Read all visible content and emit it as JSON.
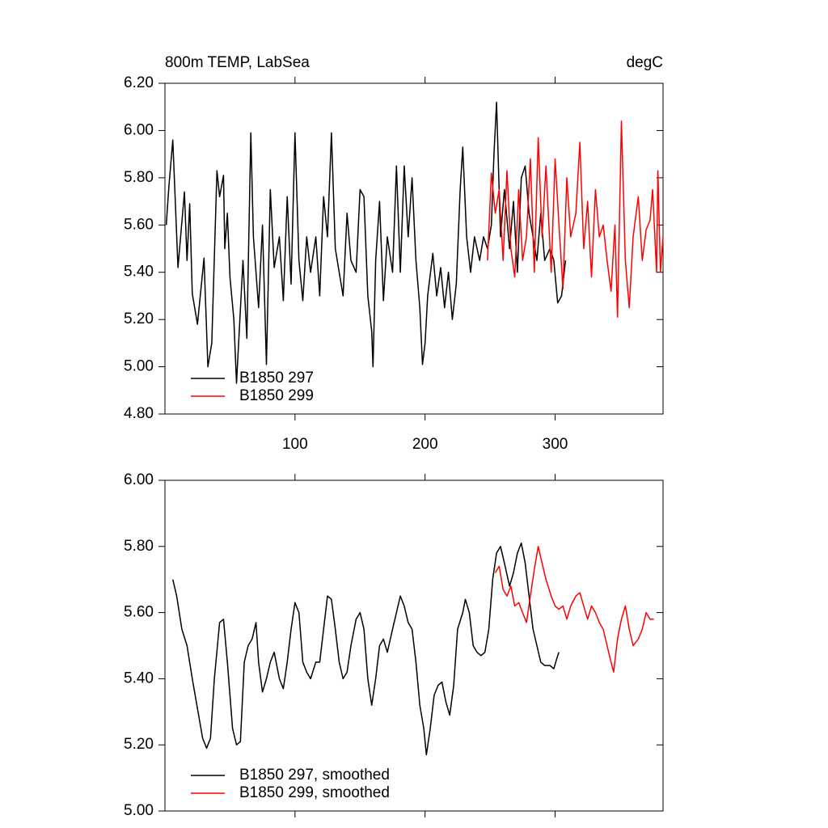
{
  "chart_data": [
    {
      "type": "line",
      "title": "800m TEMP, LabSea",
      "units": "degC",
      "xlim": [
        0,
        383
      ],
      "xticks": [
        100,
        200,
        300
      ],
      "show_xtick_labels": true,
      "ylim": [
        4.8,
        6.2
      ],
      "yticks": [
        {
          "value": 4.8,
          "label": "4.80"
        },
        {
          "value": 5.0,
          "label": "5.00"
        },
        {
          "value": 5.2,
          "label": "5.20"
        },
        {
          "value": 5.4,
          "label": "5.40"
        },
        {
          "value": 5.6,
          "label": "5.60"
        },
        {
          "value": 5.8,
          "label": "5.80"
        },
        {
          "value": 6.0,
          "label": "6.00"
        },
        {
          "value": 6.2,
          "label": "6.20"
        }
      ],
      "legend": "lower left",
      "series": [
        {
          "name": "B1850 297",
          "color": "#000000",
          "x": [
            1,
            3,
            6,
            10,
            15,
            17,
            19,
            21,
            25,
            30,
            33,
            36,
            40,
            42,
            45,
            46,
            48,
            50,
            53,
            55,
            60,
            63,
            66,
            68,
            72,
            75,
            78,
            81,
            84,
            88,
            91,
            94,
            97,
            100,
            103,
            106,
            109,
            112,
            116,
            119,
            122,
            125,
            128,
            131,
            134,
            137,
            140,
            143,
            147,
            150,
            153,
            156,
            159,
            160,
            162,
            165,
            168,
            171,
            175,
            178,
            181,
            184,
            187,
            190,
            193,
            196,
            198,
            200,
            202,
            206,
            209,
            212,
            215,
            218,
            221,
            224,
            227,
            229,
            232,
            235,
            238,
            242,
            245,
            248,
            251,
            253,
            255,
            258,
            261,
            265,
            268,
            271,
            274,
            277,
            280,
            283,
            286,
            289,
            292,
            296,
            299,
            302,
            305,
            308
          ],
          "values": [
            5.6,
            5.76,
            5.96,
            5.42,
            5.74,
            5.45,
            5.69,
            5.31,
            5.18,
            5.46,
            5.0,
            5.1,
            5.83,
            5.72,
            5.81,
            5.5,
            5.65,
            5.38,
            5.2,
            4.93,
            5.45,
            5.12,
            5.99,
            5.55,
            5.25,
            5.6,
            5.01,
            5.75,
            5.42,
            5.55,
            5.28,
            5.72,
            5.35,
            5.99,
            5.45,
            5.28,
            5.55,
            5.4,
            5.55,
            5.3,
            5.72,
            5.55,
            5.99,
            5.5,
            5.4,
            5.3,
            5.65,
            5.45,
            5.4,
            5.75,
            5.72,
            5.3,
            5.15,
            5.0,
            5.45,
            5.7,
            5.28,
            5.55,
            5.4,
            5.85,
            5.4,
            5.85,
            5.55,
            5.8,
            5.45,
            5.25,
            5.01,
            5.1,
            5.3,
            5.48,
            5.3,
            5.42,
            5.25,
            5.4,
            5.2,
            5.35,
            5.75,
            5.93,
            5.55,
            5.4,
            5.55,
            5.45,
            5.55,
            5.5,
            5.6,
            5.9,
            6.12,
            5.55,
            5.75,
            5.5,
            5.7,
            5.4,
            5.8,
            5.85,
            5.65,
            5.55,
            5.45,
            5.65,
            5.45,
            5.5,
            5.45,
            5.27,
            5.3,
            5.45
          ]
        },
        {
          "name": "B1850 299",
          "color": "#ff0000",
          "x": [
            248,
            251,
            254,
            257,
            260,
            263,
            266,
            269,
            272,
            275,
            278,
            281,
            284,
            287,
            290,
            293,
            297,
            300,
            303,
            306,
            309,
            312,
            316,
            319,
            322,
            325,
            328,
            331,
            334,
            337,
            340,
            343,
            346,
            348,
            351,
            354,
            357,
            360,
            364,
            367,
            370,
            373,
            375,
            378,
            379,
            381,
            383
          ],
          "values": [
            5.45,
            5.82,
            5.65,
            5.75,
            5.45,
            5.83,
            5.5,
            5.38,
            5.75,
            5.45,
            5.55,
            5.88,
            5.4,
            5.97,
            5.55,
            5.85,
            5.4,
            5.88,
            5.6,
            5.33,
            5.8,
            5.55,
            5.65,
            5.95,
            5.5,
            5.7,
            5.38,
            5.75,
            5.55,
            5.6,
            5.45,
            5.32,
            5.6,
            5.21,
            6.04,
            5.45,
            5.25,
            5.55,
            5.72,
            5.45,
            5.58,
            5.62,
            5.75,
            5.4,
            5.83,
            5.4,
            5.55
          ]
        }
      ]
    },
    {
      "type": "line",
      "xlim": [
        0,
        383
      ],
      "xticks": [
        100,
        200,
        300
      ],
      "show_xtick_labels": false,
      "ylim": [
        5.0,
        6.0
      ],
      "yticks": [
        {
          "value": 5.0,
          "label": "5.00"
        },
        {
          "value": 5.2,
          "label": "5.20"
        },
        {
          "value": 5.4,
          "label": "5.40"
        },
        {
          "value": 5.6,
          "label": "5.60"
        },
        {
          "value": 5.8,
          "label": "5.80"
        },
        {
          "value": 6.0,
          "label": "6.00"
        }
      ],
      "legend": "lower left",
      "series": [
        {
          "name": "B1850 297, smoothed",
          "color": "#000000",
          "x": [
            6,
            9,
            13,
            17,
            21,
            25,
            29,
            32,
            35,
            38,
            42,
            45,
            48,
            52,
            55,
            58,
            61,
            64,
            67,
            70,
            72,
            75,
            78,
            81,
            84,
            88,
            91,
            94,
            97,
            100,
            103,
            106,
            109,
            112,
            116,
            119,
            122,
            125,
            128,
            131,
            134,
            137,
            140,
            143,
            147,
            150,
            153,
            156,
            159,
            162,
            165,
            168,
            171,
            175,
            178,
            181,
            184,
            187,
            190,
            193,
            196,
            199,
            201,
            204,
            207,
            210,
            213,
            216,
            219,
            222,
            225,
            229,
            231,
            234,
            237,
            240,
            243,
            246,
            249,
            252,
            255,
            258,
            261,
            265,
            268,
            271,
            274,
            277,
            280,
            283,
            286,
            289,
            292,
            296,
            299,
            302,
            303
          ],
          "values": [
            5.7,
            5.65,
            5.55,
            5.5,
            5.4,
            5.31,
            5.22,
            5.19,
            5.22,
            5.4,
            5.57,
            5.58,
            5.45,
            5.25,
            5.2,
            5.21,
            5.45,
            5.5,
            5.52,
            5.57,
            5.45,
            5.36,
            5.4,
            5.45,
            5.48,
            5.4,
            5.37,
            5.45,
            5.55,
            5.63,
            5.6,
            5.45,
            5.42,
            5.4,
            5.45,
            5.45,
            5.55,
            5.65,
            5.64,
            5.55,
            5.45,
            5.4,
            5.42,
            5.5,
            5.58,
            5.6,
            5.55,
            5.4,
            5.32,
            5.4,
            5.5,
            5.52,
            5.48,
            5.55,
            5.6,
            5.65,
            5.62,
            5.57,
            5.55,
            5.45,
            5.32,
            5.25,
            5.17,
            5.25,
            5.35,
            5.38,
            5.39,
            5.33,
            5.29,
            5.38,
            5.55,
            5.6,
            5.64,
            5.6,
            5.5,
            5.48,
            5.47,
            5.48,
            5.55,
            5.7,
            5.78,
            5.8,
            5.75,
            5.68,
            5.72,
            5.78,
            5.81,
            5.75,
            5.65,
            5.55,
            5.5,
            5.45,
            5.44,
            5.44,
            5.43,
            5.47,
            5.48
          ]
        },
        {
          "name": "B1850 299, smoothed",
          "color": "#ff0000",
          "x": [
            254,
            257,
            260,
            263,
            266,
            269,
            272,
            275,
            278,
            281,
            284,
            287,
            290,
            293,
            297,
            300,
            303,
            306,
            309,
            312,
            316,
            319,
            322,
            325,
            328,
            331,
            334,
            337,
            340,
            343,
            345,
            348,
            351,
            354,
            357,
            360,
            364,
            367,
            370,
            373,
            376
          ],
          "values": [
            5.72,
            5.74,
            5.67,
            5.65,
            5.68,
            5.62,
            5.63,
            5.6,
            5.57,
            5.65,
            5.73,
            5.8,
            5.75,
            5.7,
            5.65,
            5.62,
            5.61,
            5.62,
            5.58,
            5.62,
            5.65,
            5.66,
            5.62,
            5.58,
            5.62,
            5.6,
            5.57,
            5.55,
            5.5,
            5.45,
            5.42,
            5.52,
            5.58,
            5.62,
            5.55,
            5.5,
            5.52,
            5.55,
            5.6,
            5.58,
            5.58
          ]
        }
      ]
    }
  ]
}
